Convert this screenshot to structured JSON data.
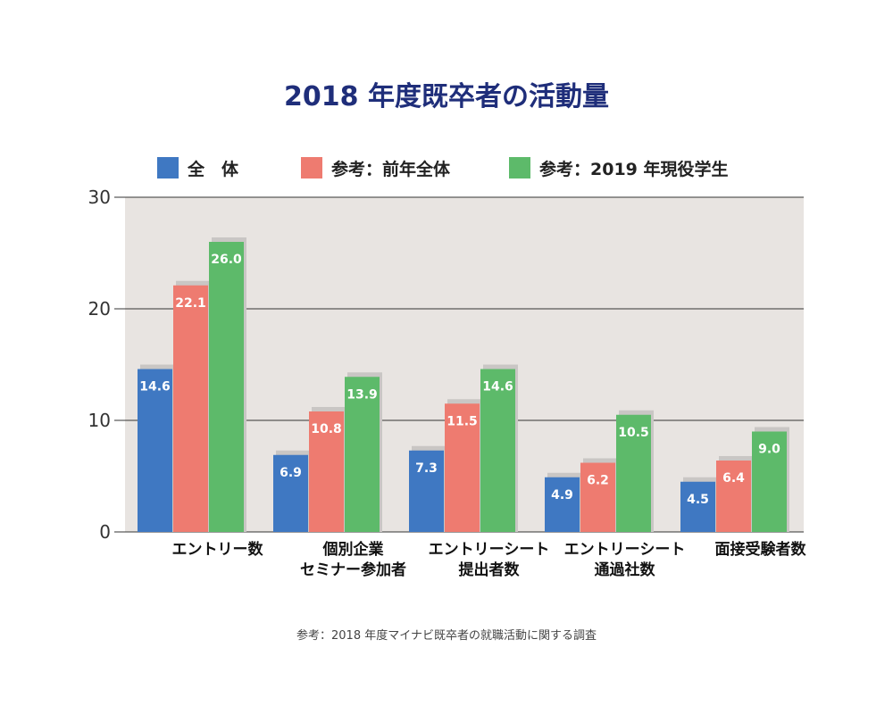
{
  "chart_data": {
    "type": "bar",
    "title": "2018 年度既卒者の活動量",
    "categories": [
      [
        "エントリー数"
      ],
      [
        "個別企業",
        "セミナー参加者"
      ],
      [
        "エントリーシート",
        "提出者数"
      ],
      [
        "エントリーシート",
        "通過社数"
      ],
      [
        "面接受験者数"
      ]
    ],
    "series": [
      {
        "name": "全　体",
        "color": "#3f78c2",
        "values": [
          14.6,
          6.9,
          7.3,
          4.9,
          4.5
        ]
      },
      {
        "name": "参考：前年全体",
        "color": "#ee7b70",
        "values": [
          22.1,
          10.8,
          11.5,
          6.2,
          6.4
        ]
      },
      {
        "name": "参考：2019 年現役学生",
        "color": "#5dba6a",
        "values": [
          26.0,
          13.9,
          14.6,
          10.5,
          9.0
        ]
      }
    ],
    "ylim": [
      0,
      30
    ],
    "yticks": [
      0,
      10,
      20,
      30
    ],
    "grid": true,
    "legend_position": "top",
    "plot_background": "#e8e4e1"
  },
  "source_note": "参考：2018 年度マイナビ既卒者の就職活動に関する調査"
}
